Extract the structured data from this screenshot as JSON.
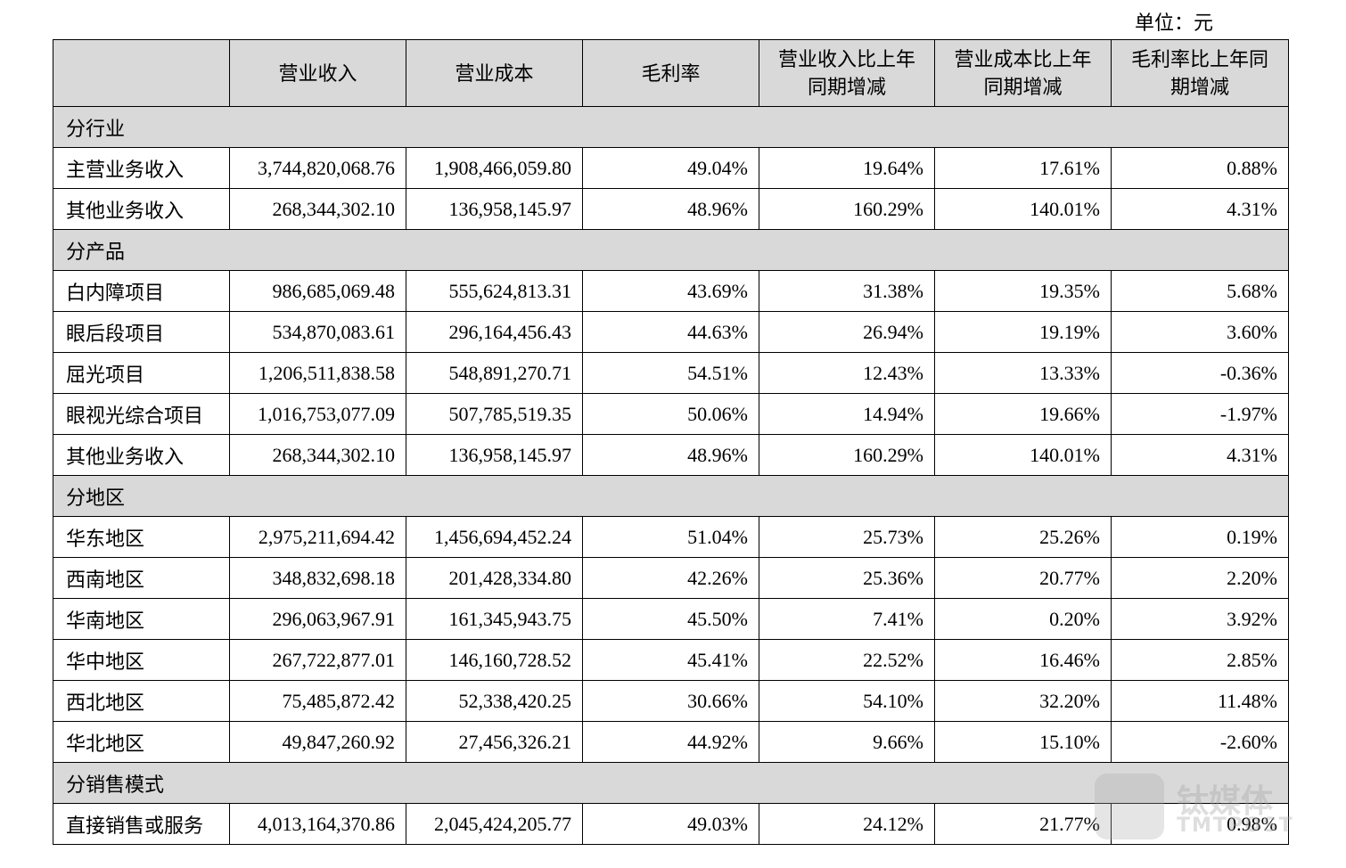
{
  "unit": "单位：元",
  "table": {
    "header": [
      "营业收入",
      "营业成本",
      "毛利率",
      "营业收入比上年同期增减",
      "营业成本比上年同期增减",
      "毛利率比上年同期增减"
    ],
    "sections": [
      {
        "title": "分行业",
        "rows": [
          [
            "主营业务收入",
            "3,744,820,068.76",
            "1,908,466,059.80",
            "49.04%",
            "19.64%",
            "17.61%",
            "0.88%"
          ],
          [
            "其他业务收入",
            "268,344,302.10",
            "136,958,145.97",
            "48.96%",
            "160.29%",
            "140.01%",
            "4.31%"
          ]
        ]
      },
      {
        "title": "分产品",
        "rows": [
          [
            "白内障项目",
            "986,685,069.48",
            "555,624,813.31",
            "43.69%",
            "31.38%",
            "19.35%",
            "5.68%"
          ],
          [
            "眼后段项目",
            "534,870,083.61",
            "296,164,456.43",
            "44.63%",
            "26.94%",
            "19.19%",
            "3.60%"
          ],
          [
            "屈光项目",
            "1,206,511,838.58",
            "548,891,270.71",
            "54.51%",
            "12.43%",
            "13.33%",
            "-0.36%"
          ],
          [
            "眼视光综合项目",
            "1,016,753,077.09",
            "507,785,519.35",
            "50.06%",
            "14.94%",
            "19.66%",
            "-1.97%"
          ],
          [
            "其他业务收入",
            "268,344,302.10",
            "136,958,145.97",
            "48.96%",
            "160.29%",
            "140.01%",
            "4.31%"
          ]
        ]
      },
      {
        "title": "分地区",
        "rows": [
          [
            "华东地区",
            "2,975,211,694.42",
            "1,456,694,452.24",
            "51.04%",
            "25.73%",
            "25.26%",
            "0.19%"
          ],
          [
            "西南地区",
            "348,832,698.18",
            "201,428,334.80",
            "42.26%",
            "25.36%",
            "20.77%",
            "2.20%"
          ],
          [
            "华南地区",
            "296,063,967.91",
            "161,345,943.75",
            "45.50%",
            "7.41%",
            "0.20%",
            "3.92%"
          ],
          [
            "华中地区",
            "267,722,877.01",
            "146,160,728.52",
            "45.41%",
            "22.52%",
            "16.46%",
            "2.85%"
          ],
          [
            "西北地区",
            "75,485,872.42",
            "52,338,420.25",
            "30.66%",
            "54.10%",
            "32.20%",
            "11.48%"
          ],
          [
            "华北地区",
            "49,847,260.92",
            "27,456,326.21",
            "44.92%",
            "9.66%",
            "15.10%",
            "-2.60%"
          ]
        ]
      },
      {
        "title": "分销售模式",
        "rows": [
          [
            "直接销售或服务",
            "4,013,164,370.86",
            "2,045,424,205.77",
            "49.03%",
            "24.12%",
            "21.77%",
            "0.98%"
          ]
        ]
      }
    ]
  },
  "watermark": {
    "brand": "钛媒体",
    "latin": "TMTPOST"
  }
}
